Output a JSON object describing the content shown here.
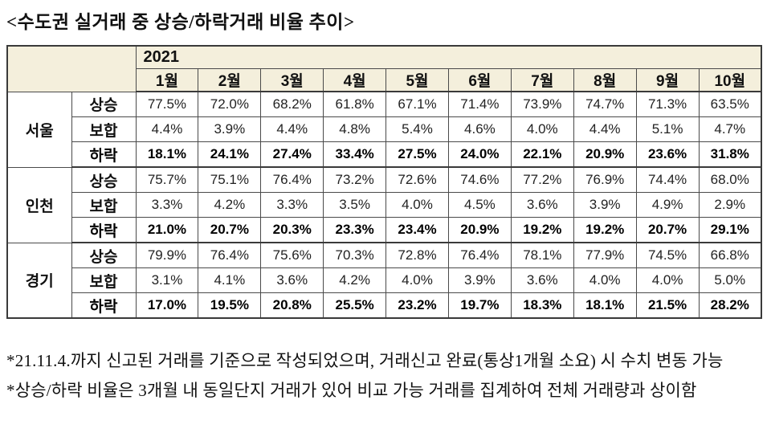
{
  "title": "<수도권 실거래 중 상승/하락거래 비율 추이>",
  "table": {
    "year_label": "2021",
    "months": [
      "1월",
      "2월",
      "3월",
      "4월",
      "5월",
      "6월",
      "7월",
      "8월",
      "9월",
      "10월"
    ],
    "regions": [
      {
        "name": "서울",
        "rows": [
          {
            "category": "상승",
            "bold": false,
            "values": [
              "77.5%",
              "72.0%",
              "68.2%",
              "61.8%",
              "67.1%",
              "71.4%",
              "73.9%",
              "74.7%",
              "71.3%",
              "63.5%"
            ]
          },
          {
            "category": "보합",
            "bold": false,
            "values": [
              "4.4%",
              "3.9%",
              "4.4%",
              "4.8%",
              "5.4%",
              "4.6%",
              "4.0%",
              "4.4%",
              "5.1%",
              "4.7%"
            ]
          },
          {
            "category": "하락",
            "bold": true,
            "values": [
              "18.1%",
              "24.1%",
              "27.4%",
              "33.4%",
              "27.5%",
              "24.0%",
              "22.1%",
              "20.9%",
              "23.6%",
              "31.8%"
            ]
          }
        ]
      },
      {
        "name": "인천",
        "rows": [
          {
            "category": "상승",
            "bold": false,
            "values": [
              "75.7%",
              "75.1%",
              "76.4%",
              "73.2%",
              "72.6%",
              "74.6%",
              "77.2%",
              "76.9%",
              "74.4%",
              "68.0%"
            ]
          },
          {
            "category": "보합",
            "bold": false,
            "values": [
              "3.3%",
              "4.2%",
              "3.3%",
              "3.5%",
              "4.0%",
              "4.5%",
              "3.6%",
              "3.9%",
              "4.9%",
              "2.9%"
            ]
          },
          {
            "category": "하락",
            "bold": true,
            "values": [
              "21.0%",
              "20.7%",
              "20.3%",
              "23.3%",
              "23.4%",
              "20.9%",
              "19.2%",
              "19.2%",
              "20.7%",
              "29.1%"
            ]
          }
        ]
      },
      {
        "name": "경기",
        "rows": [
          {
            "category": "상승",
            "bold": false,
            "values": [
              "79.9%",
              "76.4%",
              "75.6%",
              "70.3%",
              "72.8%",
              "76.4%",
              "78.1%",
              "77.9%",
              "74.5%",
              "66.8%"
            ]
          },
          {
            "category": "보합",
            "bold": false,
            "values": [
              "3.1%",
              "4.1%",
              "3.6%",
              "4.2%",
              "4.0%",
              "3.9%",
              "3.6%",
              "4.0%",
              "4.0%",
              "5.0%"
            ]
          },
          {
            "category": "하락",
            "bold": true,
            "values": [
              "17.0%",
              "19.5%",
              "20.8%",
              "25.5%",
              "23.2%",
              "19.7%",
              "18.3%",
              "18.1%",
              "21.5%",
              "28.2%"
            ]
          }
        ]
      }
    ]
  },
  "footnotes": [
    "*21.11.4.까지 신고된 거래를 기준으로 작성되었으며, 거래신고 완료(통상1개월 소요) 시 수치 변동 가능",
    "*상승/하락 비율은 3개월 내 동일단지 거래가 있어 비교 가능 거래를 집계하여 전체 거래량과 상이함"
  ],
  "colors": {
    "header_bg": "#F4EFDC",
    "border_thin": "#4a4a4a",
    "border_thick": "#3a3a3a",
    "text": "#111111"
  }
}
